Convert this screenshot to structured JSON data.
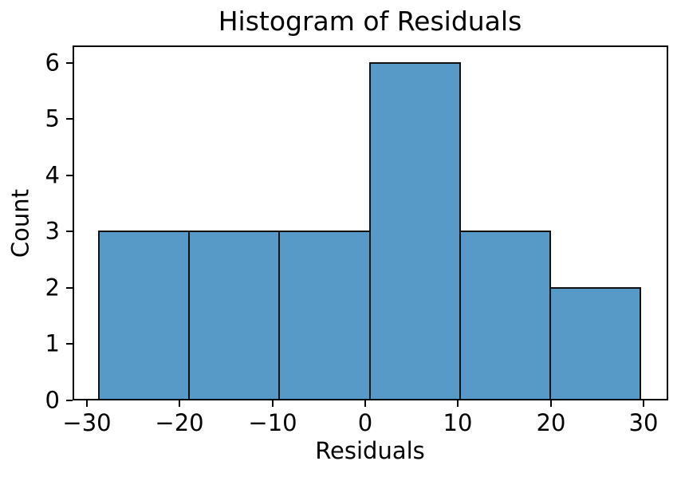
{
  "chart_data": {
    "type": "bar",
    "subtype": "histogram",
    "title": "Histogram of Residuals",
    "xlabel": "Residuals",
    "ylabel": "Count",
    "bin_edges": [
      -28.7,
      -18.97,
      -9.25,
      0.48,
      10.21,
      19.93,
      29.66
    ],
    "counts": [
      3,
      3,
      3,
      6,
      3,
      2
    ],
    "xticks": [
      -30,
      -20,
      -10,
      0,
      10,
      20,
      30
    ],
    "xtick_labels": [
      "−30",
      "−20",
      "−10",
      "0",
      "10",
      "20",
      "30"
    ],
    "yticks": [
      0,
      1,
      2,
      3,
      4,
      5,
      6
    ],
    "ytick_labels": [
      "0",
      "1",
      "2",
      "3",
      "4",
      "5",
      "6"
    ],
    "xlim": [
      -31.55,
      32.67
    ],
    "ylim": [
      0,
      6.31
    ],
    "grid": false,
    "legend": false,
    "colors": {
      "bar_fill": "#5799c7",
      "bar_edge": "#111111",
      "spine": "#000000",
      "text": "#000000"
    }
  }
}
